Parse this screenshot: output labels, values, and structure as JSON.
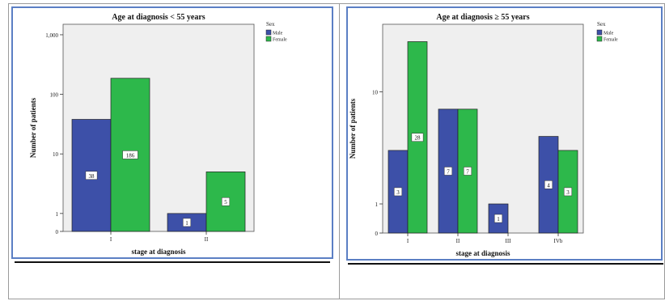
{
  "colors": {
    "male": "#3d50a8",
    "female": "#2db84b",
    "plot_bg": "#efefef",
    "frame": "#5b7fc4"
  },
  "legend_title": "Sex",
  "chart_data": [
    {
      "type": "bar",
      "title": "Age at diagnosis < 55 years",
      "xlabel": "stage at diagnosis",
      "ylabel": "Number of patients",
      "yscale": "log",
      "ylim": [
        0.5,
        1500
      ],
      "yticks": [
        1,
        10,
        100,
        1000
      ],
      "ytick_labels": [
        "1",
        "10",
        "100",
        "1,000"
      ],
      "categories": [
        "I",
        "II"
      ],
      "series": [
        {
          "name": "Male",
          "values": [
            38,
            1
          ]
        },
        {
          "name": "Female",
          "values": [
            186,
            5
          ]
        }
      ],
      "data_labels": [
        [
          "38",
          "1"
        ],
        [
          "186",
          "5"
        ]
      ],
      "legend": "top-right"
    },
    {
      "type": "bar",
      "title": "Age at diagnosis ≥ 55 years",
      "xlabel": "stage at diagnosis",
      "ylabel": "Number of patients",
      "yscale": "log",
      "ylim": [
        0.55,
        40
      ],
      "yticks": [
        1,
        10
      ],
      "ytick_labels": [
        "1",
        "10"
      ],
      "categories": [
        "I",
        "II",
        "III",
        "IVb"
      ],
      "series": [
        {
          "name": "Male",
          "values": [
            3,
            7,
            1,
            4
          ]
        },
        {
          "name": "Female",
          "values": [
            28,
            7,
            null,
            3
          ]
        }
      ],
      "data_labels": [
        [
          "3",
          "7",
          "1",
          "4"
        ],
        [
          "28",
          "7",
          "",
          "3"
        ]
      ],
      "legend": "top-right"
    }
  ]
}
